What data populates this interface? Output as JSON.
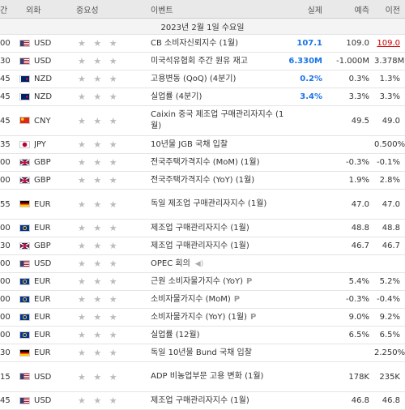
{
  "header": {
    "time": "간",
    "currency": "외화",
    "importance": "중요성",
    "event": "이벤트",
    "actual": "실제",
    "forecast": "예측",
    "previous": "이전"
  },
  "date_row": "2023년 2월 1일 수요일",
  "rows": [
    {
      "time": "00",
      "flag": "us",
      "currency": "USD",
      "event": "CB 소비자신뢰지수 (1월)",
      "actual": "107.1",
      "actual_color": "blue",
      "forecast": "109.0",
      "previous": "109.0",
      "prev_color": "red"
    },
    {
      "time": "30",
      "flag": "us",
      "currency": "USD",
      "event": "미국석유협회 주간 원유 재고",
      "actual": "6.330M",
      "actual_color": "blue",
      "forecast": "-1.000M",
      "previous": "3.378M"
    },
    {
      "time": "45",
      "flag": "nz",
      "currency": "NZD",
      "event": "고용변동 (QoQ) (4분기)",
      "actual": "0.2%",
      "actual_color": "blue",
      "forecast": "0.3%",
      "previous": "1.3%"
    },
    {
      "time": "45",
      "flag": "nz",
      "currency": "NZD",
      "event": "실업률 (4분기)",
      "actual": "3.4%",
      "actual_color": "blue",
      "forecast": "3.3%",
      "previous": "3.3%"
    },
    {
      "time": "45",
      "flag": "cn",
      "currency": "CNY",
      "event": "Caixin 중국 제조업 구매관리자지수 (1월)",
      "actual": "",
      "forecast": "49.5",
      "previous": "49.0",
      "double": true
    },
    {
      "time": "35",
      "flag": "jp",
      "currency": "JPY",
      "event": "10년물 JGB 국채 입찰",
      "actual": "",
      "forecast": "",
      "previous": "0.500%"
    },
    {
      "time": "00",
      "flag": "gb",
      "currency": "GBP",
      "event": "전국주택가격지수 (MoM) (1월)",
      "actual": "",
      "forecast": "-0.3%",
      "previous": "-0.1%"
    },
    {
      "time": "00",
      "flag": "gb",
      "currency": "GBP",
      "event": "전국주택가격지수 (YoY) (1월)",
      "actual": "",
      "forecast": "1.9%",
      "previous": "2.8%"
    },
    {
      "time": "55",
      "flag": "de",
      "currency": "EUR",
      "event": "독일 제조업 구매관리자지수 (1월)",
      "actual": "",
      "forecast": "47.0",
      "previous": "47.0",
      "double": true
    },
    {
      "time": "00",
      "flag": "eu",
      "currency": "EUR",
      "event": "제조업 구매관리자지수 (1월)",
      "actual": "",
      "forecast": "48.8",
      "previous": "48.8"
    },
    {
      "time": "30",
      "flag": "gb",
      "currency": "GBP",
      "event": "제조업 구매관리자지수 (1월)",
      "actual": "",
      "forecast": "46.7",
      "previous": "46.7"
    },
    {
      "time": "00",
      "flag": "us",
      "currency": "USD",
      "event": "OPEC 회의",
      "actual": "",
      "forecast": "",
      "previous": "",
      "speaker": true
    },
    {
      "time": "00",
      "flag": "eu",
      "currency": "EUR",
      "event": "근원 소비자물가지수 (YoY)",
      "actual": "",
      "forecast": "5.4%",
      "previous": "5.2%",
      "prelim": "P"
    },
    {
      "time": "00",
      "flag": "eu",
      "currency": "EUR",
      "event": "소비자물가지수 (MoM)",
      "actual": "",
      "forecast": "-0.3%",
      "previous": "-0.4%",
      "prelim": "P"
    },
    {
      "time": "00",
      "flag": "eu",
      "currency": "EUR",
      "event": "소비자물가지수 (YoY) (1월)",
      "actual": "",
      "forecast": "9.0%",
      "previous": "9.2%",
      "prelim": "P"
    },
    {
      "time": "00",
      "flag": "eu",
      "currency": "EUR",
      "event": "실업률 (12월)",
      "actual": "",
      "forecast": "6.5%",
      "previous": "6.5%"
    },
    {
      "time": "30",
      "flag": "de",
      "currency": "EUR",
      "event": "독일 10년물 Bund 국채 입찰",
      "actual": "",
      "forecast": "",
      "previous": "2.250%"
    },
    {
      "time": "15",
      "flag": "us",
      "currency": "USD",
      "event": "ADP 비농업부문 고용 변화 (1월)",
      "actual": "",
      "forecast": "178K",
      "previous": "235K",
      "double": true
    },
    {
      "time": "45",
      "flag": "us",
      "currency": "USD",
      "event": "제조업 구매관리자지수 (1월)",
      "actual": "",
      "forecast": "46.8",
      "previous": "46.8"
    }
  ],
  "stars": "★ ★ ★",
  "speaker_icon": "◀)"
}
